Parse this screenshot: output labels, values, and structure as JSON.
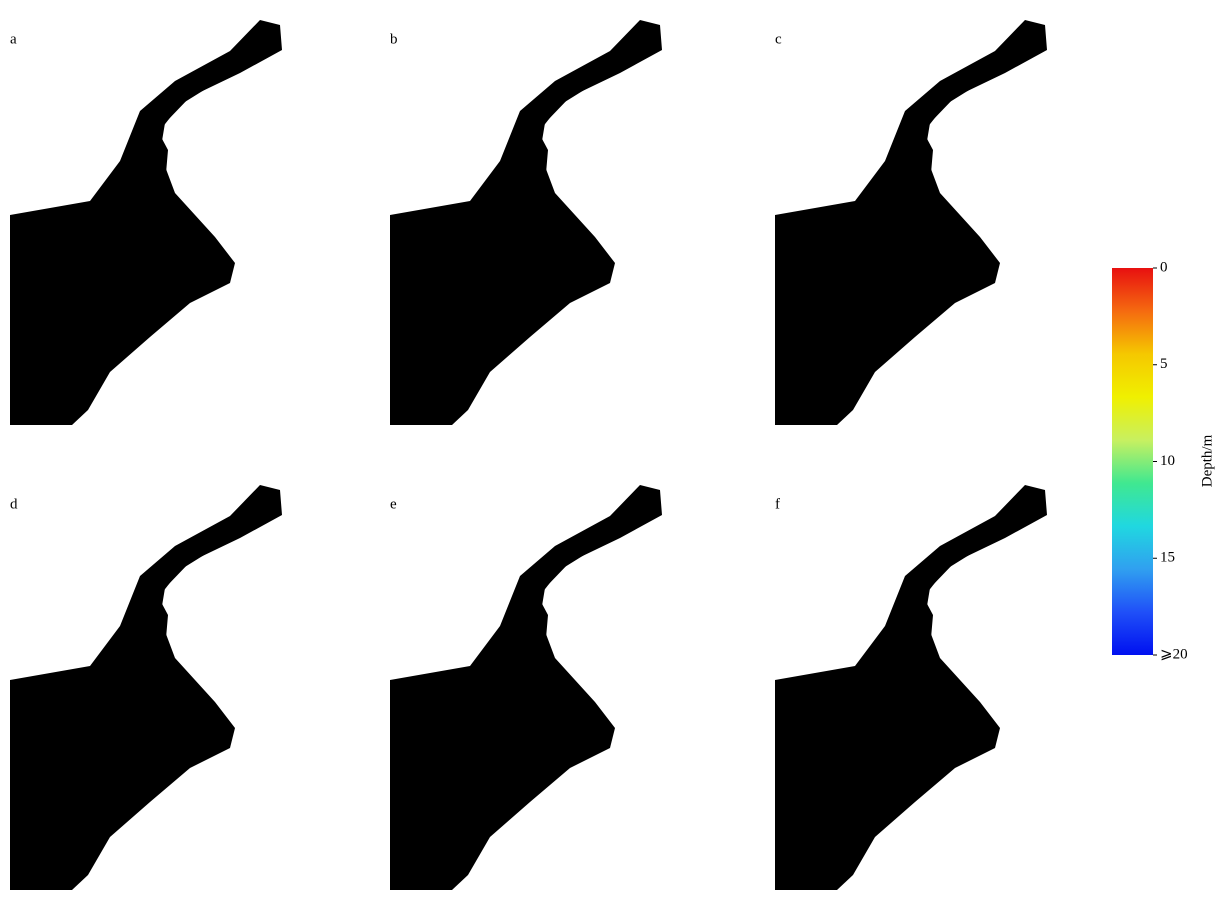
{
  "panels": [
    {
      "label": "a"
    },
    {
      "label": "b"
    },
    {
      "label": "c"
    },
    {
      "label": "d"
    },
    {
      "label": "e"
    },
    {
      "label": "f"
    }
  ],
  "colorbar": {
    "title": "Depth/m",
    "lim": [
      0,
      20
    ],
    "ticks": [
      0,
      5,
      10,
      15,
      {
        "value": 20,
        "label": "⩾20"
      }
    ],
    "colors": [
      "#e81010",
      "#f56a10",
      "#f5c800",
      "#f0f000",
      "#c8f060",
      "#40e890",
      "#20d8e0",
      "#30a0f0",
      "#2050f8",
      "#0010f0"
    ]
  }
}
